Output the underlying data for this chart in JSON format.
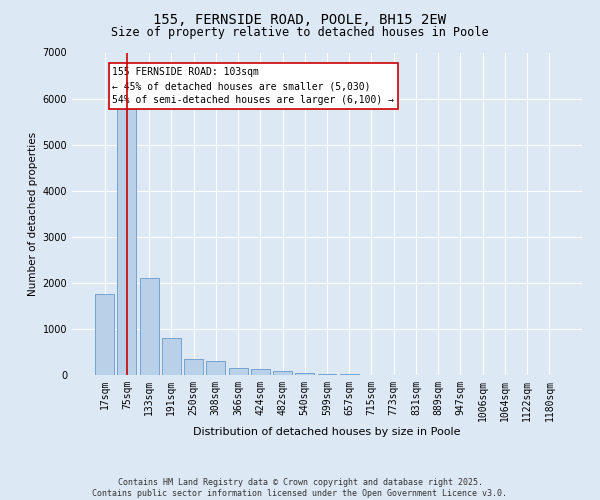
{
  "title": "155, FERNSIDE ROAD, POOLE, BH15 2EW",
  "subtitle": "Size of property relative to detached houses in Poole",
  "xlabel": "Distribution of detached houses by size in Poole",
  "ylabel": "Number of detached properties",
  "categories": [
    "17sqm",
    "75sqm",
    "133sqm",
    "191sqm",
    "250sqm",
    "308sqm",
    "366sqm",
    "424sqm",
    "482sqm",
    "540sqm",
    "599sqm",
    "657sqm",
    "715sqm",
    "773sqm",
    "831sqm",
    "889sqm",
    "947sqm",
    "1006sqm",
    "1064sqm",
    "1122sqm",
    "1180sqm"
  ],
  "values": [
    1750,
    5950,
    2100,
    800,
    350,
    300,
    150,
    120,
    80,
    50,
    30,
    15,
    8,
    4,
    2,
    1,
    1,
    0,
    0,
    0,
    0
  ],
  "bar_color": "#b8d0e8",
  "bar_edge_color": "#6699cc",
  "vline_x_index": 1,
  "vline_color": "#cc0000",
  "annotation_text": "155 FERNSIDE ROAD: 103sqm\n← 45% of detached houses are smaller (5,030)\n54% of semi-detached houses are larger (6,100) →",
  "annotation_box_color": "white",
  "annotation_box_edge": "#cc0000",
  "ylim": [
    0,
    7000
  ],
  "yticks": [
    0,
    1000,
    2000,
    3000,
    4000,
    5000,
    6000,
    7000
  ],
  "footer": "Contains HM Land Registry data © Crown copyright and database right 2025.\nContains public sector information licensed under the Open Government Licence v3.0.",
  "bg_color": "#dce8f4",
  "plot_bg_color": "#dce8f4",
  "title_fontsize": 10,
  "subtitle_fontsize": 8.5,
  "xlabel_fontsize": 8,
  "ylabel_fontsize": 7.5,
  "tick_fontsize": 7,
  "annotation_fontsize": 7,
  "footer_fontsize": 6
}
